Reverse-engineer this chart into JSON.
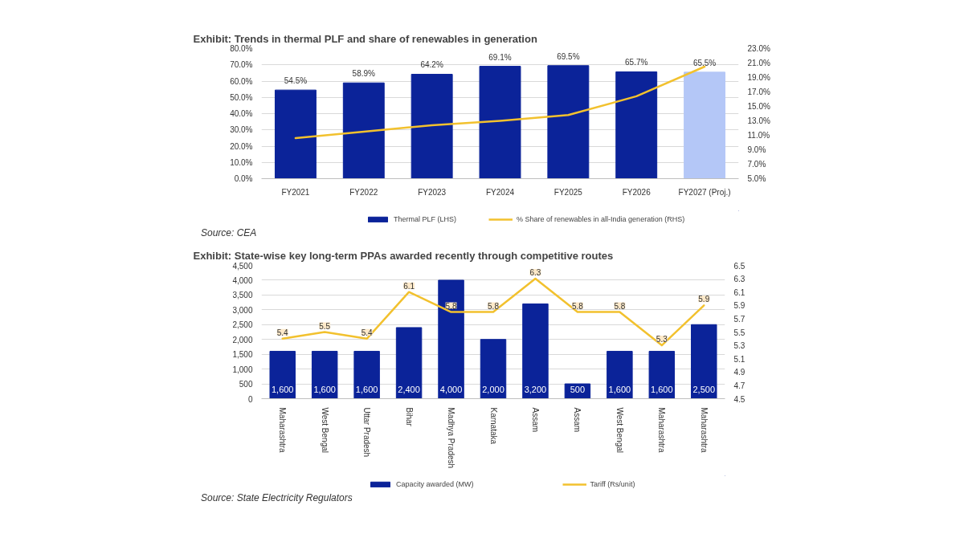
{
  "chart_data": [
    {
      "type": "bar",
      "title": "Exhibit: Trends in thermal PLF and share of renewables in generation",
      "categories": [
        "FY2021",
        "FY2022",
        "FY2023",
        "FY2024",
        "FY2025",
        "FY2026",
        "FY2027 (Proj.)"
      ],
      "series": [
        {
          "name": "Thermal PLF (LHS)",
          "type": "bar",
          "colors": [
            "#0b2399",
            "#0b2399",
            "#0b2399",
            "#0b2399",
            "#0b2399",
            "#0b2399",
            "#b4c7f7"
          ],
          "values": [
            54.5,
            58.9,
            64.2,
            69.1,
            69.5,
            65.7,
            65.5
          ],
          "value_labels": [
            "54.5%",
            "58.9%",
            "64.2%",
            "69.1%",
            "69.5%",
            "65.7%",
            "65.5%"
          ]
        },
        {
          "name": "% Share of renewables in all-India generation (RHS)",
          "type": "line",
          "axis": "y2",
          "color": "#f2c12e",
          "values": [
            10.6,
            11.5,
            12.4,
            13.0,
            13.8,
            16.4,
            20.5
          ]
        }
      ],
      "ylim": [
        0,
        80
      ],
      "yticks": [
        {
          "value": 0,
          "label": "0.0%"
        },
        {
          "value": 10,
          "label": "10.0%"
        },
        {
          "value": 20,
          "label": "20.0%"
        },
        {
          "value": 30,
          "label": "30.0%"
        },
        {
          "value": 40,
          "label": "40.0%"
        },
        {
          "value": 50,
          "label": "50.0%"
        },
        {
          "value": 60,
          "label": "60.0%"
        },
        {
          "value": 70,
          "label": "70.0%"
        },
        {
          "value": 80,
          "label": "80.0%"
        }
      ],
      "y2lim": [
        5,
        23
      ],
      "y2ticks": [
        {
          "value": 5,
          "label": "5.0%"
        },
        {
          "value": 7,
          "label": "7.0%"
        },
        {
          "value": 9,
          "label": "9.0%"
        },
        {
          "value": 11,
          "label": "11.0%"
        },
        {
          "value": 13,
          "label": "13.0%"
        },
        {
          "value": 15,
          "label": "15.0%"
        },
        {
          "value": 17,
          "label": "17.0%"
        },
        {
          "value": 19,
          "label": "19.0%"
        },
        {
          "value": 21,
          "label": "21.0%"
        },
        {
          "value": 23,
          "label": "23.0%"
        }
      ],
      "grid": "y",
      "legend": "bottom",
      "annotations": [
        "Source: CEA"
      ]
    },
    {
      "type": "bar",
      "title": "Exhibit: State-wise key long-term PPAs awarded recently through competitive routes",
      "categories": [
        "Maharashtra",
        "West Bengal",
        "Uttar Pradesh",
        "Bihar",
        "Madhya Pradesh",
        "Karnataka",
        "Assam",
        "Assam",
        "West Bengal",
        "Maharashtra",
        "Maharashtra"
      ],
      "series": [
        {
          "name": "Capacity awarded (MW)",
          "type": "bar",
          "color": "#0b2399",
          "values": [
            1600,
            1600,
            1600,
            2400,
            4000,
            2000,
            3200,
            500,
            1600,
            1600,
            2500
          ],
          "value_labels": [
            "1,600",
            "1,600",
            "1,600",
            "2,400",
            "4,000",
            "2,000",
            "3,200",
            "500",
            "1,600",
            "1,600",
            "2,500"
          ]
        },
        {
          "name": "Tariff (Rs/unit)",
          "type": "line",
          "axis": "y2",
          "color": "#f2c12e",
          "values": [
            5.4,
            5.5,
            5.4,
            6.1,
            5.8,
            5.8,
            6.3,
            5.8,
            5.8,
            5.3,
            5.9
          ],
          "value_labels": [
            "5.4",
            "5.5",
            "5.4",
            "6.1",
            "5.8",
            "5.8",
            "6.3",
            "5.8",
            "5.8",
            "5.3",
            "5.9"
          ]
        }
      ],
      "ylim": [
        0,
        4500
      ],
      "yticks": [
        0,
        500,
        {
          "value": 1000,
          "label": "1,000"
        },
        {
          "value": 1500,
          "label": "1,500"
        },
        {
          "value": 2000,
          "label": "2,000"
        },
        {
          "value": 2500,
          "label": "2,500"
        },
        {
          "value": 3000,
          "label": "3,000"
        },
        {
          "value": 3500,
          "label": "3,500"
        },
        {
          "value": 4000,
          "label": "4,000"
        },
        {
          "value": 4500,
          "label": "4,500"
        }
      ],
      "y2lim": [
        4.5,
        6.5
      ],
      "y2ticks": [
        4.5,
        4.7,
        4.9,
        5.1,
        5.3,
        5.5,
        5.7,
        5.9,
        6.1,
        6.3,
        6.5
      ],
      "grid": "y",
      "legend": "bottom",
      "annotations": [
        "Source: State Electricity Regulators"
      ]
    }
  ]
}
